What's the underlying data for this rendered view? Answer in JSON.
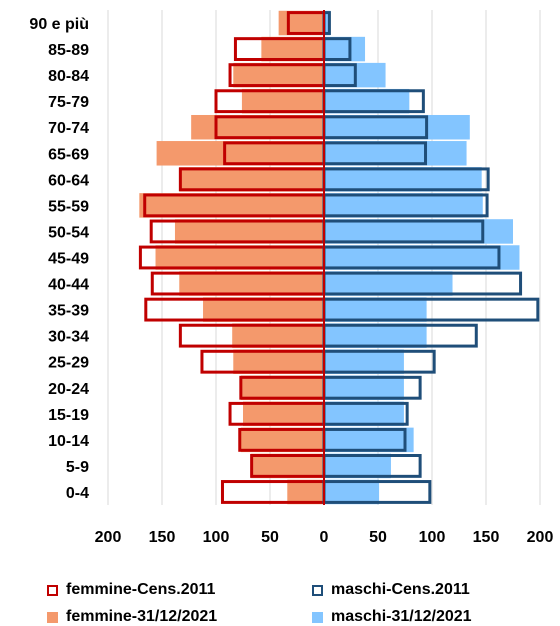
{
  "chart_data": {
    "type": "bar",
    "orientation": "horizontal",
    "layout": "population-pyramid",
    "title": "",
    "xlabel": "",
    "ylabel": "",
    "categories": [
      "0-4",
      "5-9",
      "10-14",
      "15-19",
      "20-24",
      "25-29",
      "30-34",
      "35-39",
      "40-44",
      "45-49",
      "50-54",
      "55-59",
      "60-64",
      "65-69",
      "70-74",
      "75-79",
      "80-84",
      "85-89",
      "90 e più"
    ],
    "x_ticks": [
      "200",
      "150",
      "100",
      "50",
      "0",
      "50",
      "100",
      "150",
      "200"
    ],
    "xlim": [
      -200,
      200
    ],
    "grid": true,
    "legend_position": "bottom",
    "series": [
      {
        "name": "femmine-Cens.2011",
        "side": "left",
        "style": "outline",
        "color": "#C00000",
        "values": [
          94,
          67,
          78,
          87,
          77,
          113,
          133,
          165,
          159,
          170,
          160,
          166,
          133,
          92,
          100,
          100,
          87,
          82,
          33
        ]
      },
      {
        "name": "maschi-Cens.2011",
        "side": "right",
        "style": "outline",
        "color": "#1F4E79",
        "values": [
          98,
          89,
          75,
          77,
          89,
          102,
          141,
          198,
          182,
          162,
          147,
          151,
          152,
          94,
          95,
          92,
          29,
          24,
          5
        ]
      },
      {
        "name": "femmine-31/12/2021",
        "side": "left",
        "style": "filled",
        "color": "#F4996C",
        "values": [
          34,
          68,
          77,
          75,
          77,
          84,
          85,
          112,
          134,
          156,
          138,
          171,
          134,
          155,
          123,
          76,
          84,
          58,
          42
        ]
      },
      {
        "name": "maschi-31/12/2021",
        "side": "right",
        "style": "filled",
        "color": "#83C5FF",
        "values": [
          51,
          62,
          83,
          74,
          74,
          74,
          95,
          95,
          119,
          181,
          175,
          147,
          146,
          132,
          135,
          79,
          57,
          38,
          6
        ]
      }
    ]
  }
}
